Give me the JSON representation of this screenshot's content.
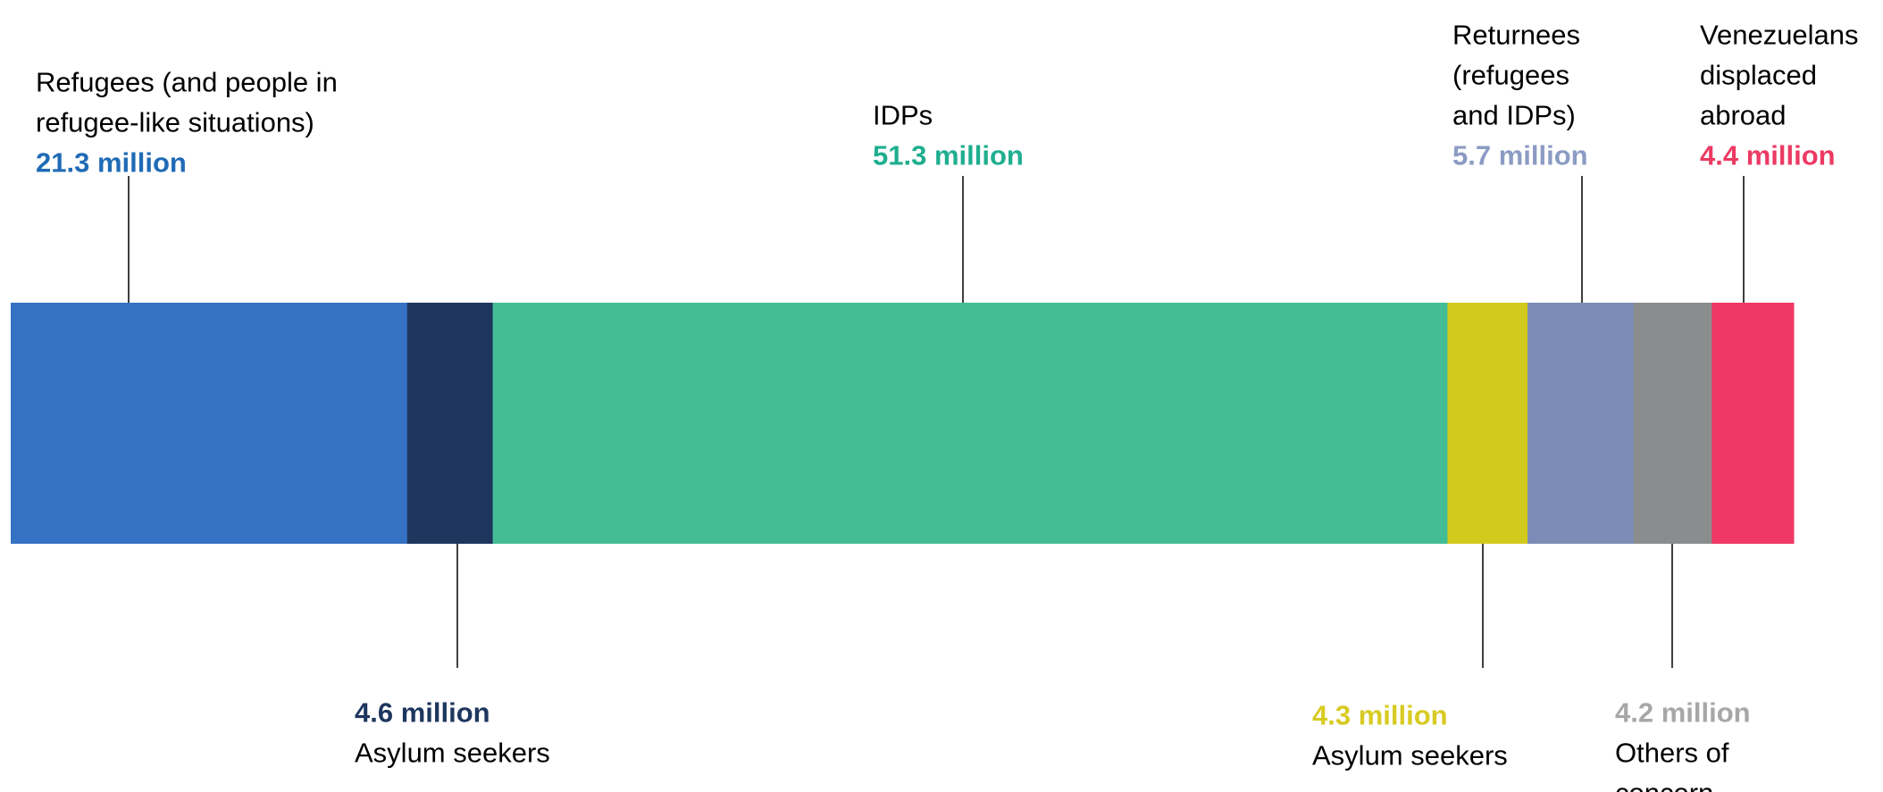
{
  "chart_data": {
    "type": "bar",
    "orientation": "horizontal-stacked",
    "unit": "million",
    "grid": false,
    "legend": "none",
    "segments": [
      {
        "key": "refugees",
        "name_lines": [
          "Refugees (and people in",
          "refugee-like situations)"
        ],
        "value": 21.3,
        "value_label": "21.3 million",
        "color": "#3672C4",
        "value_color": "#1F6BB5",
        "label_position": "top"
      },
      {
        "key": "asylum-seekers-1",
        "name_lines": [
          "Asylum seekers"
        ],
        "value": 4.6,
        "value_label": "4.6 million",
        "color": "#1E365E",
        "value_color": "#1E365E",
        "label_position": "bottom"
      },
      {
        "key": "idps",
        "name_lines": [
          "IDPs"
        ],
        "value": 51.3,
        "value_label": "51.3 million",
        "color": "#44BD95",
        "value_color": "#1FAE8F",
        "label_position": "top"
      },
      {
        "key": "asylum-seekers-2",
        "name_lines": [
          "Asylum seekers"
        ],
        "value": 4.3,
        "value_label": "4.3 million",
        "color": "#D2CA1D",
        "value_color": "#D8CB22",
        "label_position": "bottom"
      },
      {
        "key": "returnees",
        "name_lines": [
          "Returnees",
          "(refugees",
          "and IDPs)"
        ],
        "value": 5.7,
        "value_label": "5.7 million",
        "color": "#7B8CB6",
        "value_color": "#8B9BC2",
        "label_position": "top"
      },
      {
        "key": "others-of-concern",
        "name_lines": [
          "Others of",
          "concern"
        ],
        "value": 4.2,
        "value_label": "4.2 million",
        "color": "#8A8D8E",
        "value_color": "#A5A7A8",
        "label_position": "bottom"
      },
      {
        "key": "venezuelans",
        "name_lines": [
          "Venezuelans",
          "displaced",
          "abroad"
        ],
        "value": 4.4,
        "value_label": "4.4 million",
        "color": "#EF3866",
        "value_color": "#EC3A63",
        "label_position": "top"
      }
    ]
  }
}
